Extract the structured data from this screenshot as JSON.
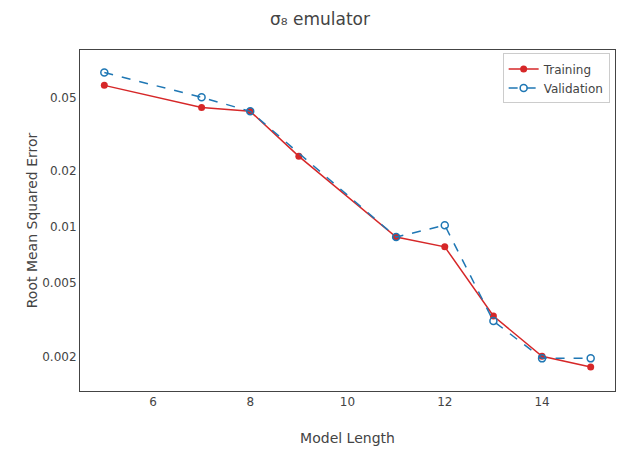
{
  "chart_data": {
    "type": "line",
    "title": "σ₈ emulator",
    "x_label": "Model Length",
    "y_label": "Root Mean Squared Error",
    "log": "y",
    "grid": false,
    "legend": "upper right",
    "xlim": [
      4.5,
      15.5
    ],
    "xticks": [
      6,
      8,
      10,
      12,
      14
    ],
    "ylim": [
      0.0013,
      0.09
    ],
    "yticks": [
      0.002,
      0.005,
      0.01,
      0.02,
      0.05
    ],
    "series": [
      {
        "name": "Training",
        "color": "#d62728",
        "marker": "circle",
        "line_style": "solid",
        "x": [
          5,
          7,
          8,
          9,
          11,
          12,
          13,
          14,
          15
        ],
        "values": [
          0.058,
          0.044,
          0.042,
          0.024,
          0.0088,
          0.0078,
          0.0033,
          0.002,
          0.00175
        ]
      },
      {
        "name": "Validation",
        "color": "#1f77b4",
        "marker": "circle-open",
        "line_style": "dash",
        "x": [
          5,
          7,
          8,
          11,
          12,
          13,
          14,
          15
        ],
        "values": [
          0.068,
          0.05,
          0.042,
          0.0088,
          0.0102,
          0.0031,
          0.00195,
          0.00195
        ]
      }
    ]
  }
}
